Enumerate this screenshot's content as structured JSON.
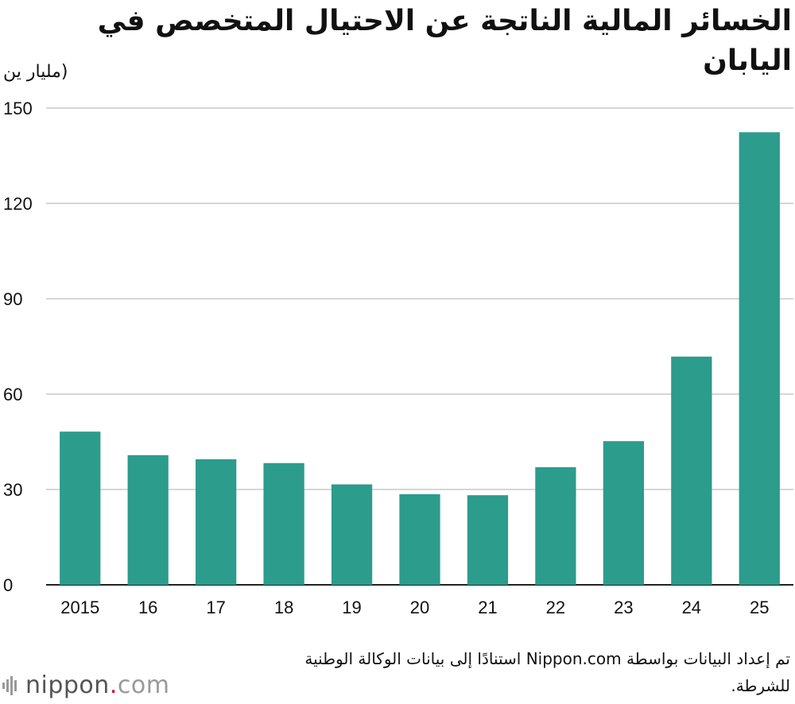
{
  "chart_data": {
    "type": "bar",
    "title": "الخسائر المالية الناتجة عن الاحتيال المتخصص في اليابان",
    "ylabel": "(مليار ين",
    "xlabel": "",
    "categories": [
      "2015",
      "16",
      "17",
      "18",
      "19",
      "20",
      "21",
      "22",
      "23",
      "24",
      "25"
    ],
    "values": [
      48.2,
      40.8,
      39.5,
      38.3,
      31.6,
      28.5,
      28.2,
      37.0,
      45.2,
      71.8,
      142.4
    ],
    "ylim": [
      0,
      150
    ],
    "yticks": [
      0,
      30,
      60,
      90,
      120,
      150
    ],
    "grid": true,
    "bar_color": "#2c9c8c"
  },
  "source_note": "تم إعداد البيانات بواسطة Nippon.com استنادًا إلى بيانات الوكالة الوطنية للشرطة.",
  "logo": {
    "name": "nippon",
    "dot": ".",
    "tld": "com"
  }
}
